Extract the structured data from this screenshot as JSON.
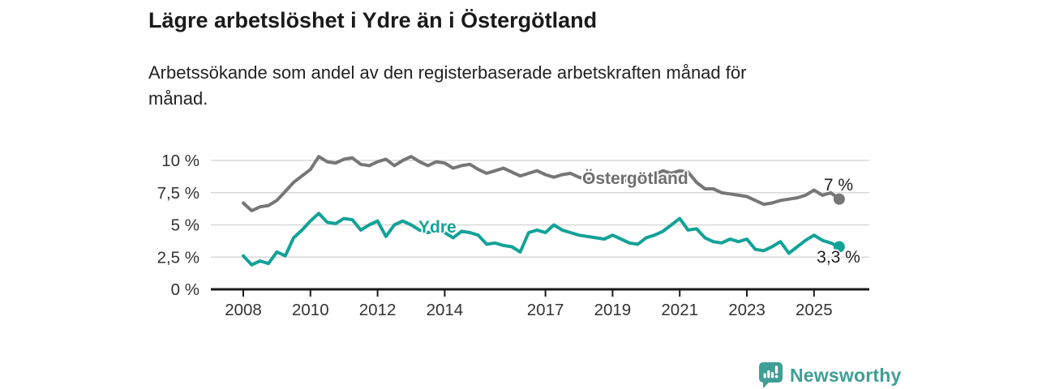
{
  "header": {
    "title": "Lägre arbetslöshet i Ydre än i Östergötland",
    "subtitle_line1": "Arbetssökande som andel av den registerbaserade arbetskraften månad för",
    "subtitle_line2": "månad."
  },
  "chart_data": {
    "type": "line",
    "title": "Lägre arbetslöshet i Ydre än i Östergötland",
    "subtitle": "Arbetssökande som andel av den registerbaserade arbetskraften månad för månad.",
    "x_unit": "decimal year (quarterly samples)",
    "xlim": [
      2007.1,
      2026.6
    ],
    "ylim": [
      0,
      10.8
    ],
    "grid": "horizontal only",
    "legend_position": "labels inline on lines, value labels at line ends",
    "x": [
      2008,
      2008.25,
      2008.5,
      2008.75,
      2009,
      2009.25,
      2009.5,
      2009.75,
      2010,
      2010.25,
      2010.5,
      2010.75,
      2011,
      2011.25,
      2011.5,
      2011.75,
      2012,
      2012.25,
      2012.5,
      2012.75,
      2013,
      2013.25,
      2013.5,
      2013.75,
      2014,
      2014.25,
      2014.5,
      2014.75,
      2015,
      2015.25,
      2015.5,
      2015.75,
      2016,
      2016.25,
      2016.5,
      2016.75,
      2017,
      2017.25,
      2017.5,
      2017.75,
      2018,
      2018.25,
      2018.5,
      2018.75,
      2019,
      2019.25,
      2019.5,
      2019.75,
      2020,
      2020.25,
      2020.5,
      2020.75,
      2021,
      2021.25,
      2021.5,
      2021.75,
      2022,
      2022.25,
      2022.5,
      2022.75,
      2023,
      2023.25,
      2023.5,
      2023.75,
      2024,
      2024.25,
      2024.5,
      2024.75,
      2025,
      2025.25,
      2025.5,
      2025.75
    ],
    "series": [
      {
        "name": "Östergötland",
        "color": "#767676",
        "end_label": "7 %",
        "end_value": 7.0,
        "values": [
          6.7,
          6.1,
          6.4,
          6.5,
          6.9,
          7.6,
          8.3,
          8.8,
          9.3,
          10.3,
          9.9,
          9.8,
          10.1,
          10.2,
          9.7,
          9.6,
          9.9,
          10.1,
          9.6,
          10.0,
          10.3,
          9.9,
          9.6,
          9.9,
          9.8,
          9.4,
          9.6,
          9.7,
          9.3,
          9.0,
          9.2,
          9.4,
          9.1,
          8.8,
          9.0,
          9.2,
          8.9,
          8.7,
          8.9,
          9.0,
          8.7,
          8.5,
          8.7,
          8.6,
          8.5,
          8.3,
          8.6,
          8.4,
          8.5,
          8.9,
          9.2,
          9.0,
          9.2,
          9.1,
          8.3,
          7.8,
          7.8,
          7.5,
          7.4,
          7.3,
          7.2,
          6.9,
          6.6,
          6.7,
          6.9,
          7.0,
          7.1,
          7.3,
          7.7,
          7.3,
          7.5,
          7.0
        ]
      },
      {
        "name": "Ydre",
        "color": "#13a297",
        "end_label": "3,3 %",
        "end_value": 3.3,
        "values": [
          2.6,
          1.9,
          2.2,
          2.0,
          2.9,
          2.6,
          4.0,
          4.6,
          5.3,
          5.9,
          5.2,
          5.1,
          5.5,
          5.4,
          4.6,
          5.0,
          5.3,
          4.1,
          5.0,
          5.3,
          5.0,
          4.6,
          4.4,
          4.6,
          4.4,
          4.0,
          4.5,
          4.4,
          4.2,
          3.5,
          3.6,
          3.4,
          3.3,
          2.9,
          4.4,
          4.6,
          4.4,
          5.0,
          4.6,
          4.4,
          4.2,
          4.1,
          4.0,
          3.9,
          4.2,
          3.9,
          3.6,
          3.5,
          4.0,
          4.2,
          4.5,
          5.0,
          5.5,
          4.6,
          4.7,
          4.0,
          3.7,
          3.6,
          3.9,
          3.7,
          3.9,
          3.1,
          3.0,
          3.3,
          3.7,
          2.8,
          3.3,
          3.8,
          4.2,
          3.8,
          3.6,
          3.3
        ]
      }
    ],
    "y_ticks": [
      {
        "value": 0,
        "label": "0 %"
      },
      {
        "value": 2.5,
        "label": "2,5 %"
      },
      {
        "value": 5,
        "label": "5 %"
      },
      {
        "value": 7.5,
        "label": "7,5 %"
      },
      {
        "value": 10,
        "label": "10 %"
      }
    ],
    "x_ticks": [
      {
        "value": 2008,
        "label": "2008"
      },
      {
        "value": 2010,
        "label": "2010"
      },
      {
        "value": 2012,
        "label": "2012"
      },
      {
        "value": 2014,
        "label": "2014"
      },
      {
        "value": 2017,
        "label": "2017"
      },
      {
        "value": 2019,
        "label": "2019"
      },
      {
        "value": 2021,
        "label": "2021"
      },
      {
        "value": 2023,
        "label": "2023"
      },
      {
        "value": 2025,
        "label": "2025"
      }
    ]
  },
  "colors": {
    "axis": "#1a1a1a",
    "gridline": "#d8d8d8",
    "tick_label": "#333333",
    "series_ostergotland": "#767676",
    "series_ydre": "#13a297",
    "brand_teal": "#3f9e96"
  },
  "footer": {
    "brand": "Newsworthy"
  }
}
